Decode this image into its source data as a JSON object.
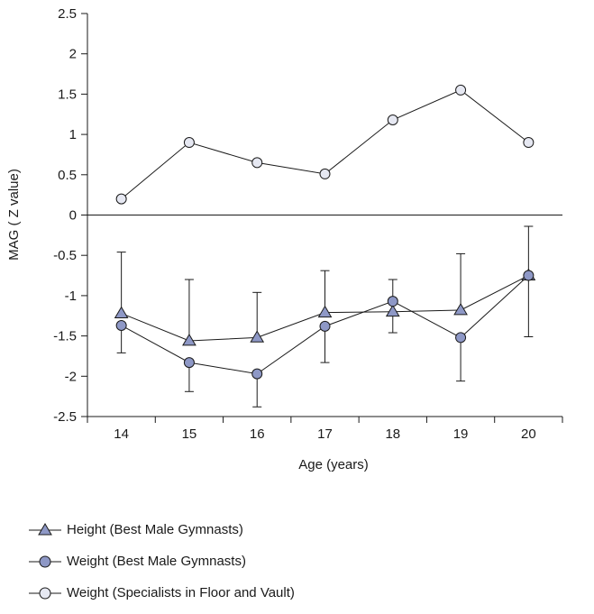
{
  "chart_data": {
    "type": "line",
    "title": "",
    "xlabel": "Age (years)",
    "ylabel": "MAG ( Z value)",
    "x": [
      14,
      15,
      16,
      17,
      18,
      19,
      20
    ],
    "x_tick_labels": [
      "14",
      "15",
      "16",
      "17",
      "18",
      "19",
      "20"
    ],
    "ylim": [
      -2.5,
      2.5
    ],
    "y_ticks": [
      2.5,
      2,
      1.5,
      1,
      0.5,
      0,
      -0.5,
      -1,
      -1.5,
      -2,
      -2.5
    ],
    "y_tick_labels": [
      "2.5",
      "2",
      "1.5",
      "1",
      "0.5",
      "0",
      "-0.5",
      "-1",
      "-1.5",
      "-2",
      "-2.5"
    ],
    "grid": false,
    "legend_position": "bottom-left",
    "series": [
      {
        "name": "Height (Best Male Gymnasts)",
        "marker": "triangle",
        "color": "#8e98c6",
        "values": [
          -1.22,
          -1.56,
          -1.52,
          -1.21,
          -1.2,
          -1.18,
          -0.75
        ],
        "error_high": [
          -0.46,
          -0.8,
          -0.96,
          -0.69,
          -0.8,
          -0.48,
          -0.14
        ],
        "error_low": [
          null,
          null,
          null,
          null,
          -1.46,
          null,
          null
        ]
      },
      {
        "name": "Weight (Best Male Gymnasts)",
        "marker": "circle",
        "color": "#8e98c6",
        "values": [
          -1.37,
          -1.83,
          -1.97,
          -1.38,
          -1.07,
          -1.52,
          -0.75
        ],
        "error_high": [
          null,
          null,
          null,
          null,
          null,
          null,
          null
        ],
        "error_low": [
          -1.71,
          -2.19,
          -2.38,
          -1.83,
          null,
          -2.06,
          -1.51
        ]
      },
      {
        "name": "Weight (Specialists in Floor and Vault)",
        "marker": "circle",
        "color": "#e6e8f2",
        "values": [
          0.2,
          0.9,
          0.65,
          0.51,
          1.18,
          1.55,
          0.9
        ]
      }
    ]
  },
  "legend": [
    {
      "label": "Height (Best Male Gymnasts)"
    },
    {
      "label": "Weight (Best Male Gymnasts)"
    },
    {
      "label": "Weight (Specialists in Floor and Vault)"
    }
  ]
}
